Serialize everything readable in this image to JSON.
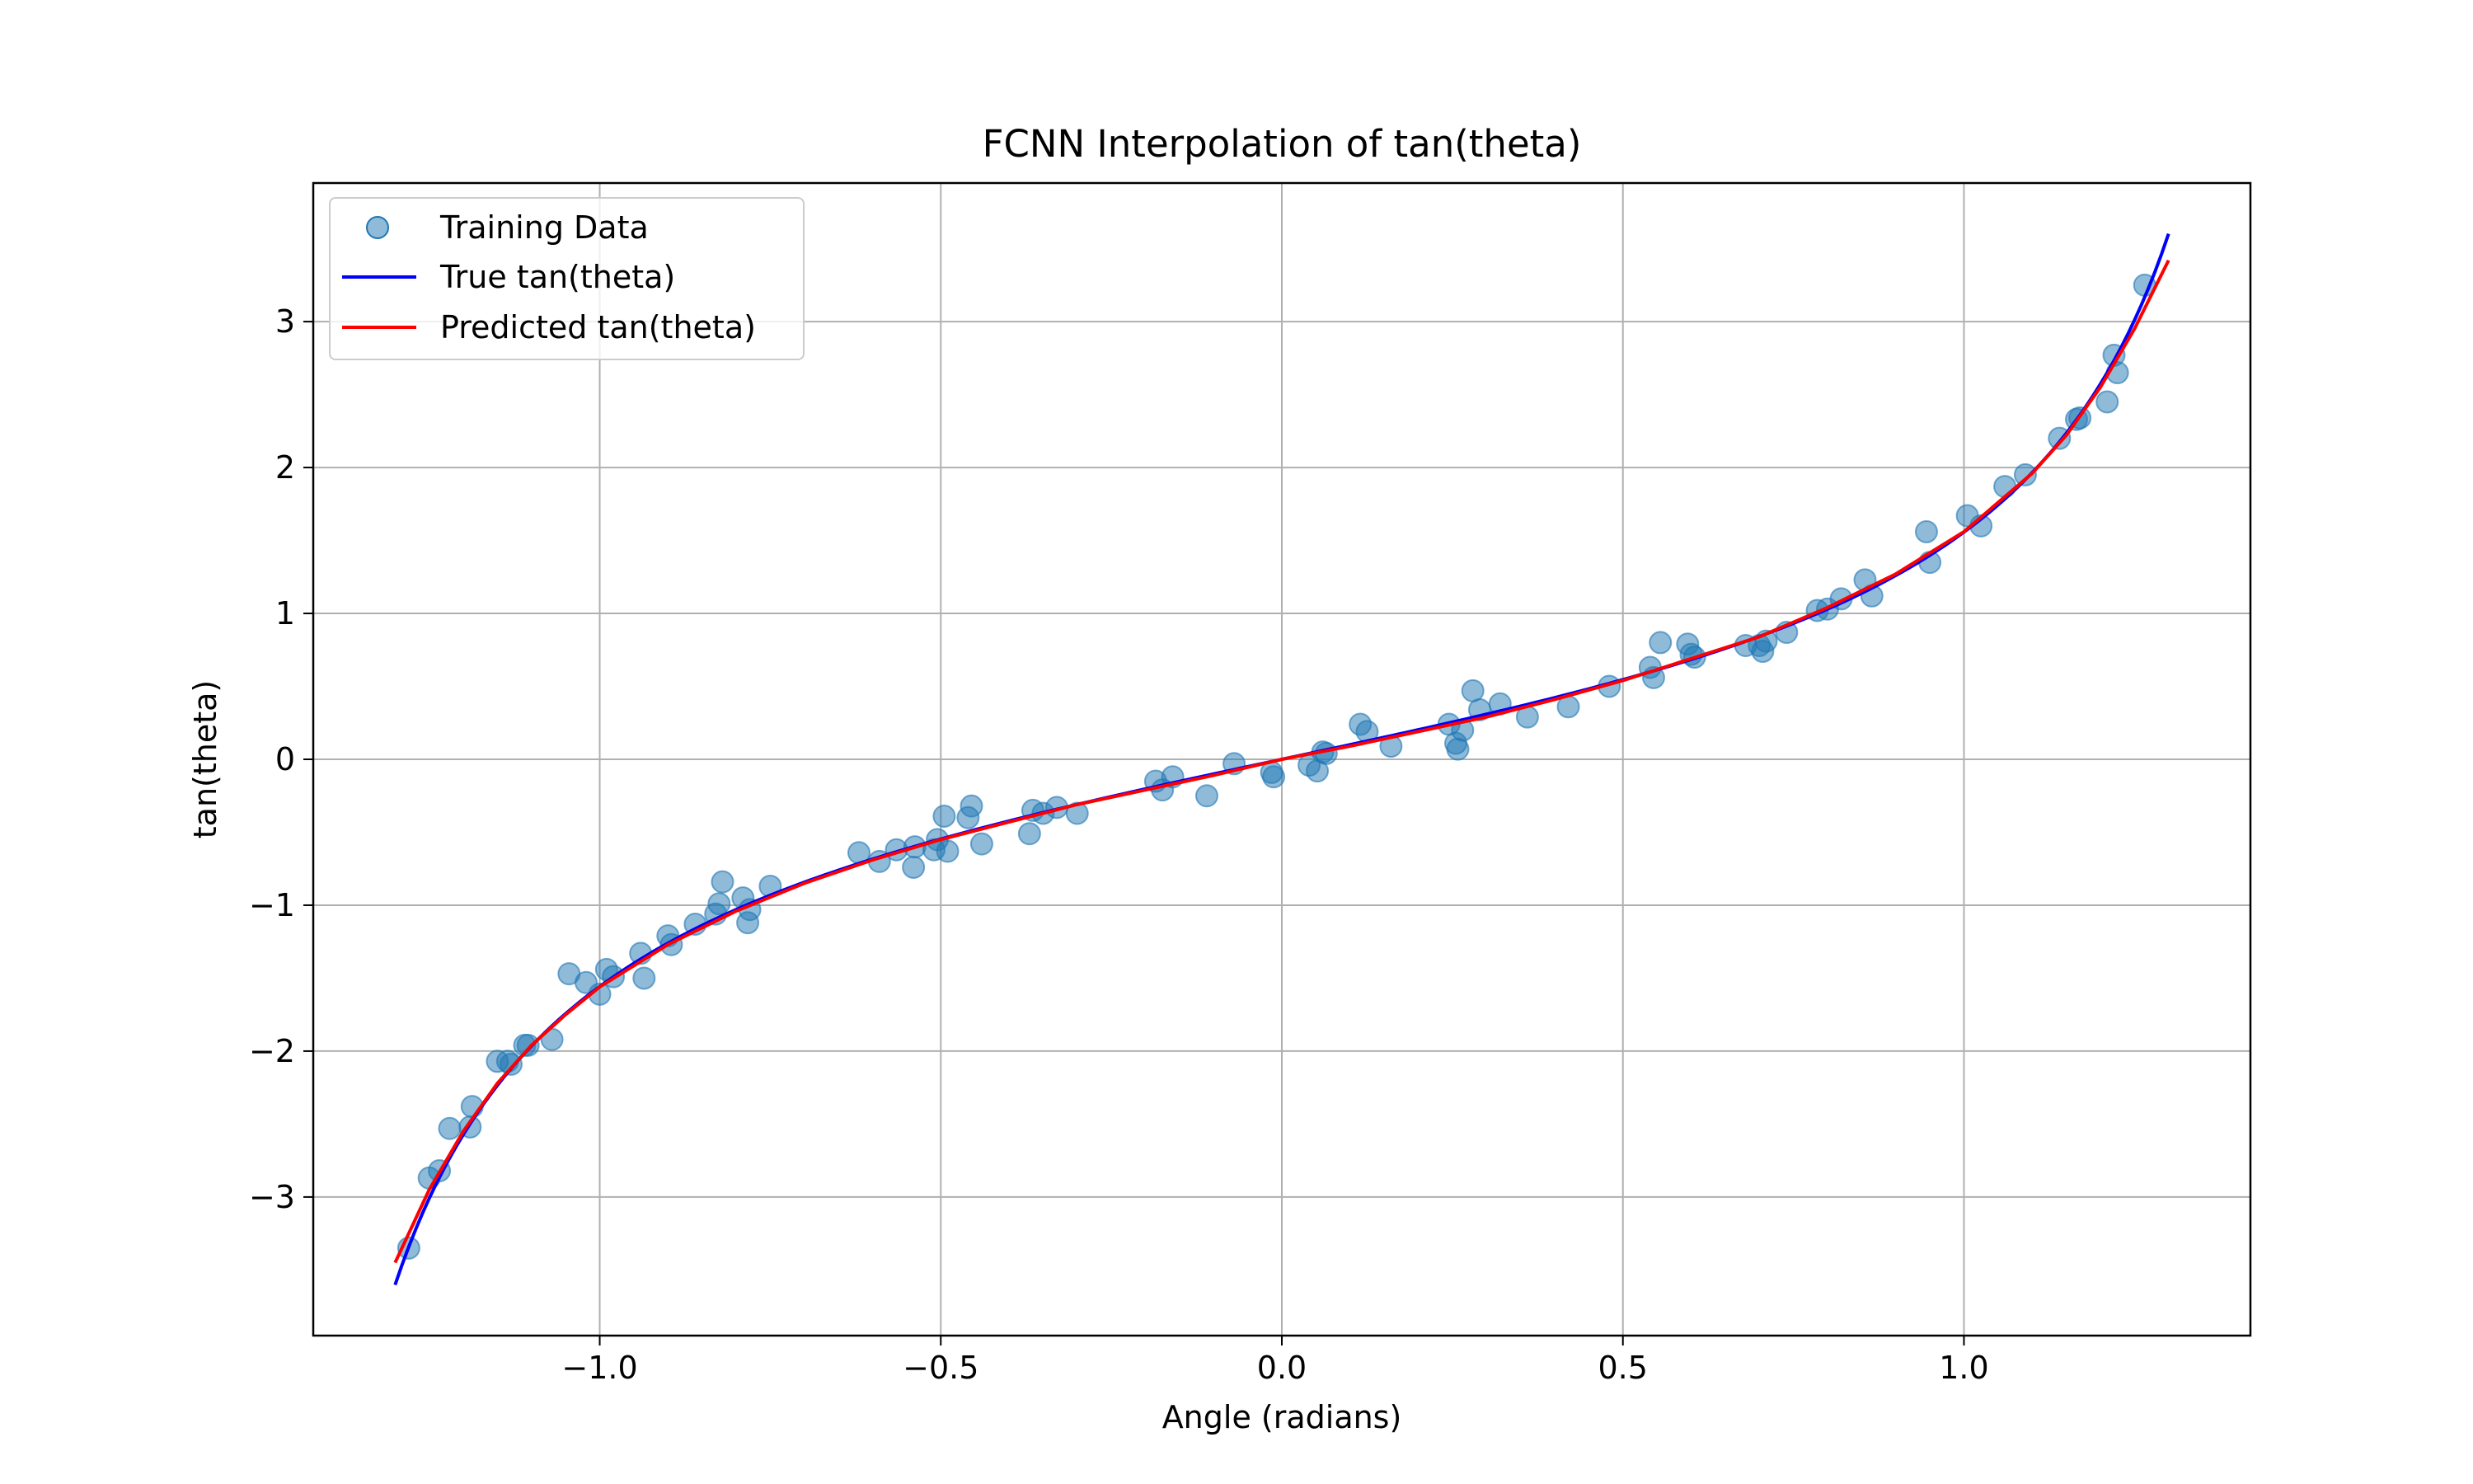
{
  "chart_data": {
    "type": "scatter",
    "title": "FCNN Interpolation of tan(theta)",
    "xlabel": "Angle (radians)",
    "ylabel": "tan(theta)",
    "xlim": [
      -1.42,
      1.42
    ],
    "ylim": [
      -3.95,
      3.95
    ],
    "grid": true,
    "legend_position": "top-left",
    "x_ticks": [
      -1.0,
      -0.5,
      0.0,
      0.5,
      1.0
    ],
    "x_tick_labels": [
      "−1.0",
      "−0.5",
      "0.0",
      "0.5",
      "1.0"
    ],
    "y_ticks": [
      -3,
      -2,
      -1,
      0,
      1,
      2,
      3
    ],
    "y_tick_labels": [
      "−3",
      "−2",
      "−1",
      "0",
      "1",
      "2",
      "3"
    ],
    "legend": [
      {
        "label": "Training Data",
        "kind": "marker",
        "color": "#1f77b4"
      },
      {
        "label": "True tan(theta)",
        "kind": "line",
        "color": "#0000ff"
      },
      {
        "label": "Predicted tan(theta)",
        "kind": "line",
        "color": "#ff0000"
      }
    ],
    "series": [
      {
        "name": "Training Data",
        "kind": "scatter",
        "color": "#1f77b4",
        "points": [
          [
            -1.28,
            -3.35
          ],
          [
            -1.25,
            -2.87
          ],
          [
            -1.235,
            -2.82
          ],
          [
            -1.22,
            -2.53
          ],
          [
            -1.19,
            -2.52
          ],
          [
            -1.187,
            -2.38
          ],
          [
            -1.15,
            -2.07
          ],
          [
            -1.135,
            -2.07
          ],
          [
            -1.13,
            -2.09
          ],
          [
            -1.11,
            -1.96
          ],
          [
            -1.105,
            -1.96
          ],
          [
            -1.07,
            -1.92
          ],
          [
            -1.045,
            -1.47
          ],
          [
            -1.02,
            -1.53
          ],
          [
            -1.0,
            -1.61
          ],
          [
            -0.99,
            -1.44
          ],
          [
            -0.98,
            -1.49
          ],
          [
            -0.94,
            -1.33
          ],
          [
            -0.935,
            -1.5
          ],
          [
            -0.9,
            -1.21
          ],
          [
            -0.895,
            -1.27
          ],
          [
            -0.86,
            -1.13
          ],
          [
            -0.83,
            -1.06
          ],
          [
            -0.825,
            -0.99
          ],
          [
            -0.82,
            -0.84
          ],
          [
            -0.79,
            -0.95
          ],
          [
            -0.783,
            -1.12
          ],
          [
            -0.78,
            -1.03
          ],
          [
            -0.75,
            -0.87
          ],
          [
            -0.62,
            -0.64
          ],
          [
            -0.59,
            -0.7
          ],
          [
            -0.565,
            -0.62
          ],
          [
            -0.54,
            -0.74
          ],
          [
            -0.538,
            -0.6
          ],
          [
            -0.51,
            -0.62
          ],
          [
            -0.505,
            -0.55
          ],
          [
            -0.495,
            -0.39
          ],
          [
            -0.49,
            -0.63
          ],
          [
            -0.46,
            -0.4
          ],
          [
            -0.455,
            -0.32
          ],
          [
            -0.44,
            -0.58
          ],
          [
            -0.37,
            -0.51
          ],
          [
            -0.365,
            -0.35
          ],
          [
            -0.35,
            -0.37
          ],
          [
            -0.33,
            -0.33
          ],
          [
            -0.3,
            -0.37
          ],
          [
            -0.185,
            -0.15
          ],
          [
            -0.175,
            -0.21
          ],
          [
            -0.16,
            -0.12
          ],
          [
            -0.11,
            -0.25
          ],
          [
            -0.07,
            -0.03
          ],
          [
            -0.015,
            -0.09
          ],
          [
            -0.012,
            -0.12
          ],
          [
            0.04,
            -0.04
          ],
          [
            0.052,
            -0.08
          ],
          [
            0.06,
            0.05
          ],
          [
            0.065,
            0.04
          ],
          [
            0.115,
            0.24
          ],
          [
            0.125,
            0.19
          ],
          [
            0.16,
            0.09
          ],
          [
            0.245,
            0.24
          ],
          [
            0.255,
            0.11
          ],
          [
            0.258,
            0.07
          ],
          [
            0.265,
            0.2
          ],
          [
            0.28,
            0.47
          ],
          [
            0.29,
            0.34
          ],
          [
            0.32,
            0.38
          ],
          [
            0.36,
            0.29
          ],
          [
            0.42,
            0.36
          ],
          [
            0.48,
            0.5
          ],
          [
            0.54,
            0.63
          ],
          [
            0.545,
            0.56
          ],
          [
            0.555,
            0.8
          ],
          [
            0.595,
            0.79
          ],
          [
            0.6,
            0.72
          ],
          [
            0.605,
            0.7
          ],
          [
            0.68,
            0.78
          ],
          [
            0.7,
            0.78
          ],
          [
            0.705,
            0.74
          ],
          [
            0.71,
            0.81
          ],
          [
            0.74,
            0.87
          ],
          [
            0.785,
            1.02
          ],
          [
            0.8,
            1.03
          ],
          [
            0.82,
            1.1
          ],
          [
            0.855,
            1.23
          ],
          [
            0.865,
            1.12
          ],
          [
            0.945,
            1.56
          ],
          [
            0.95,
            1.35
          ],
          [
            1.005,
            1.67
          ],
          [
            1.025,
            1.6
          ],
          [
            1.06,
            1.87
          ],
          [
            1.09,
            1.95
          ],
          [
            1.14,
            2.2
          ],
          [
            1.165,
            2.33
          ],
          [
            1.17,
            2.34
          ],
          [
            1.21,
            2.45
          ],
          [
            1.22,
            2.77
          ],
          [
            1.225,
            2.65
          ],
          [
            1.265,
            3.25
          ]
        ]
      },
      {
        "name": "True tan(theta)",
        "kind": "line",
        "color": "#0000ff",
        "x_range": [
          -1.3,
          1.3
        ],
        "function": "tan"
      },
      {
        "name": "Predicted tan(theta)",
        "kind": "line",
        "color": "#ff0000",
        "x": [
          -1.3,
          -1.25,
          -1.2,
          -1.15,
          -1.1,
          -1.05,
          -1.0,
          -0.9,
          -0.8,
          -0.7,
          -0.6,
          -0.5,
          -0.4,
          -0.3,
          -0.2,
          -0.1,
          0.0,
          0.1,
          0.2,
          0.3,
          0.4,
          0.5,
          0.6,
          0.7,
          0.8,
          0.9,
          1.0,
          1.1,
          1.15,
          1.2,
          1.25,
          1.3
        ],
        "y": [
          -3.45,
          -2.95,
          -2.55,
          -2.22,
          -1.96,
          -1.75,
          -1.56,
          -1.27,
          -1.04,
          -0.85,
          -0.69,
          -0.55,
          -0.43,
          -0.31,
          -0.21,
          -0.11,
          0.0,
          0.09,
          0.19,
          0.29,
          0.41,
          0.54,
          0.69,
          0.84,
          1.04,
          1.27,
          1.56,
          1.96,
          2.22,
          2.55,
          2.95,
          3.42
        ]
      }
    ]
  }
}
